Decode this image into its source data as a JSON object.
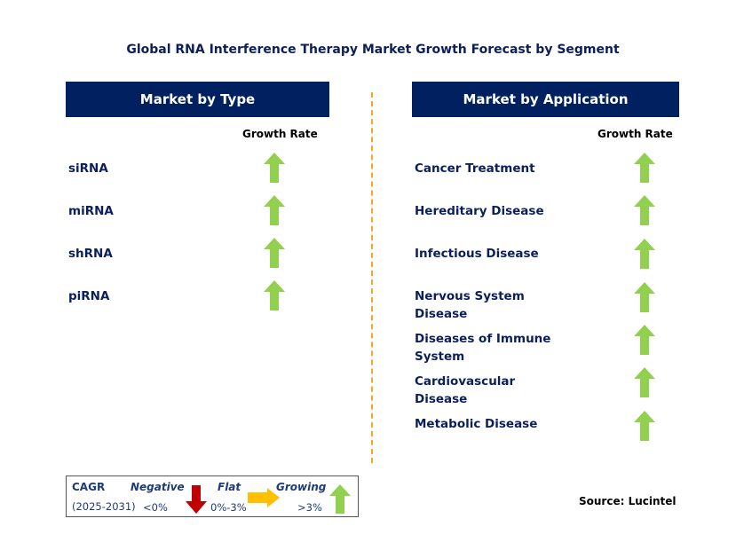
{
  "title": "Global RNA Interference Therapy Market Growth Forecast by Segment",
  "left": {
    "header": "Market by Type",
    "growth_label": "Growth Rate",
    "items": [
      {
        "label": "siRNA",
        "trend": "growing"
      },
      {
        "label": "miRNA",
        "trend": "growing"
      },
      {
        "label": "shRNA",
        "trend": "growing"
      },
      {
        "label": "piRNA",
        "trend": "growing"
      }
    ]
  },
  "right": {
    "header": "Market by Application",
    "growth_label": "Growth Rate",
    "items": [
      {
        "label": "Cancer Treatment",
        "trend": "growing"
      },
      {
        "label": "Hereditary Disease",
        "trend": "growing"
      },
      {
        "label": "Infectious Disease",
        "trend": "growing"
      },
      {
        "label": "Nervous System Disease",
        "trend": "growing"
      },
      {
        "label": "Diseases of Immune System",
        "trend": "growing"
      },
      {
        "label": "Cardiovascular Disease",
        "trend": "growing"
      },
      {
        "label": "Metabolic Disease",
        "trend": "growing"
      }
    ]
  },
  "legend": {
    "cagr": "CAGR",
    "period": "(2025-2031)",
    "negative": "Negative",
    "negative_range": "<0%",
    "flat": "Flat",
    "flat_range": "0%-3%",
    "growing": "Growing",
    "growing_range": ">3%"
  },
  "source": "Source: Lucintel",
  "colors": {
    "header": "#002060",
    "growing": "#92d050",
    "negative": "#c00000",
    "flat": "#ffc000",
    "divider": "#f5a623"
  }
}
